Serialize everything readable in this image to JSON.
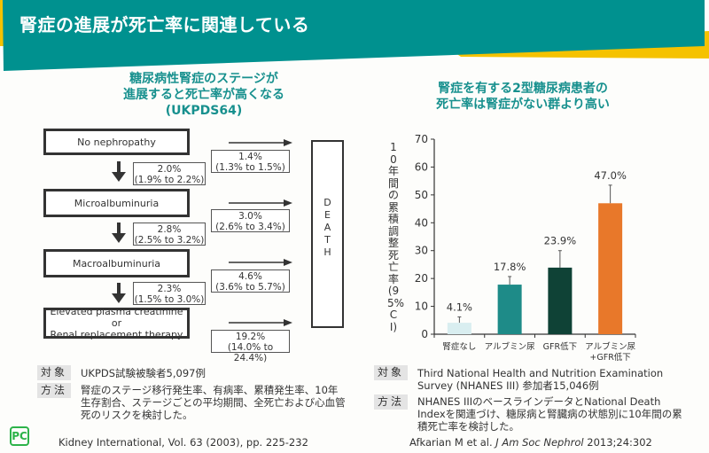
{
  "header": {
    "title": "腎症の進展が死亡率に関連している",
    "accent": "#00918f",
    "stripe": "#f5c200"
  },
  "left": {
    "subtitle": [
      "糖尿病性腎症のステージが",
      "進展すると死亡率が高くなる",
      "(UKPDS64)"
    ],
    "stages": [
      "No nephropathy",
      "Microalbuminuria",
      "Macroalbuminuria",
      "Elevated plasma creatinine or",
      "Renal replacement therapy"
    ],
    "transition_rates": [
      {
        "v": "2.0%",
        "ci": "(1.9% to 2.2%)"
      },
      {
        "v": "2.8%",
        "ci": "(2.5% to 3.2%)"
      },
      {
        "v": "2.3%",
        "ci": "(1.5% to 3.0%)"
      }
    ],
    "death_rates": [
      {
        "v": "1.4%",
        "ci": "(1.3% to 1.5%)"
      },
      {
        "v": "3.0%",
        "ci": "(2.6% to 3.4%)"
      },
      {
        "v": "4.6%",
        "ci": "(3.6% to 5.7%)"
      },
      {
        "v": "19.2%",
        "ci": "(14.0% to 24.4%)"
      }
    ],
    "death_label": "DEATH",
    "subject_tag": "対象",
    "subject": "UKPDS試験被験者5,097例",
    "method_tag": "方法",
    "method": "腎症のステージ移行発生率、有病率、累積発生率、10年生存割合、ステージごとの平均期間、全死亡および心血管死のリスクを検討した。",
    "citation": "Kidney International, Vol. 63 (2003), pp. 225-232"
  },
  "right": {
    "subtitle": [
      "腎症を有する2型糖尿病患者の",
      "死亡率は腎症がない群より高い"
    ],
    "subject_tag": "対象",
    "subject": "Third National Health and Nutrition Examination Survey (NHANES III) 参加者15,046例",
    "method_tag": "方法",
    "method": "NHANES IIIのベースラインデータとNational Death Indexを関連づけ、糖尿病と腎臓病の状態別に10年間の累積死亡率を検討した。",
    "citation_authors": "Afkarian M et al. ",
    "citation_journal": "J Am Soc Nephrol",
    "citation_rest": " 2013;24:302"
  },
  "chart_data": {
    "type": "bar",
    "ylabel": "10年間の累積調整死亡率(95%CI)",
    "ylim": [
      0,
      70
    ],
    "yticks": [
      0,
      10,
      20,
      30,
      40,
      50,
      60,
      70
    ],
    "categories": [
      "腎症なし",
      "アルブミン尿",
      "GFR低下",
      "アルブミン尿\n+GFR低下"
    ],
    "values": [
      4.1,
      17.8,
      23.9,
      47.0
    ],
    "ci_upper": [
      6.2,
      20.7,
      30.0,
      53.5
    ],
    "labels": [
      "4.1%",
      "17.8%",
      "23.9%",
      "47.0%"
    ],
    "colors": [
      "#d9eef0",
      "#1e8b88",
      "#0f4236",
      "#e8782a"
    ]
  },
  "logo": "PC"
}
